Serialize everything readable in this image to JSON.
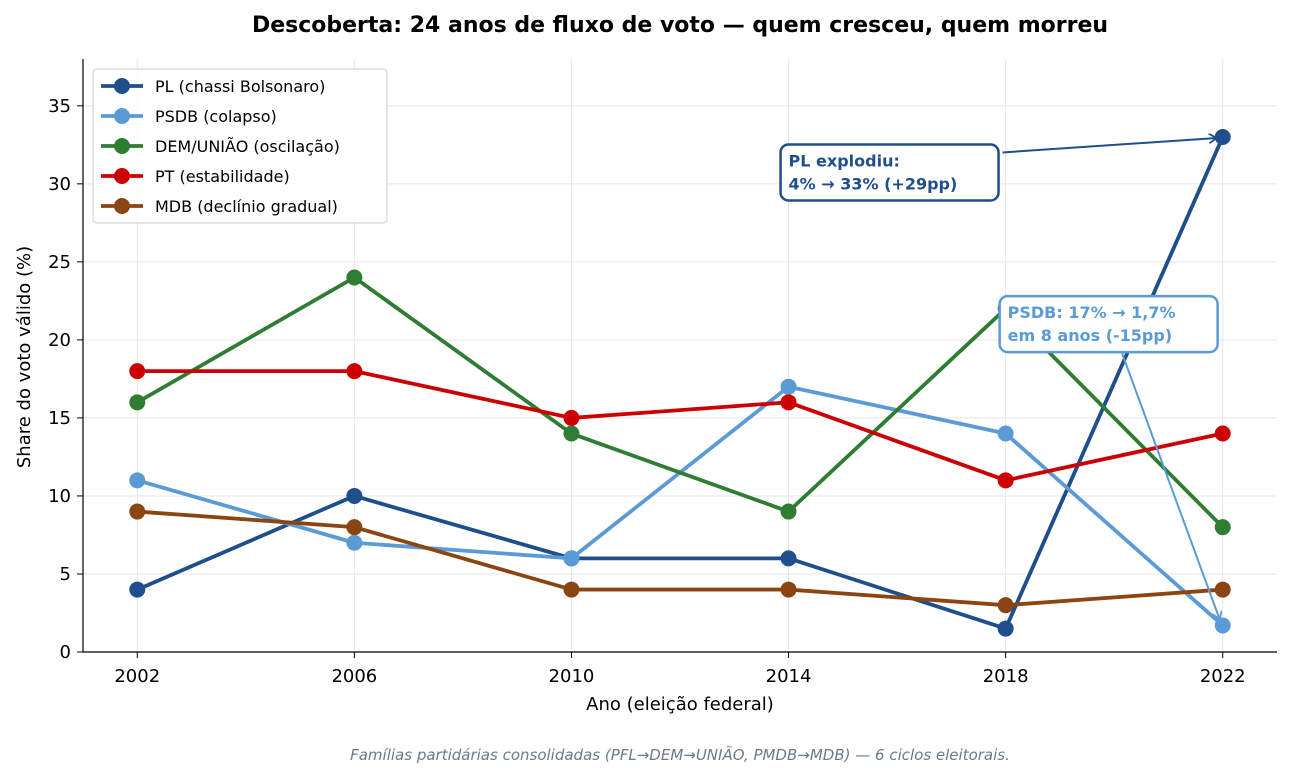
{
  "chart_data": {
    "type": "line",
    "title": "Descoberta: 24 anos de fluxo de voto — quem cresceu, quem morreu",
    "xlabel": "Ano (eleição federal)",
    "ylabel": "Share do voto válido (%)",
    "x": [
      2002,
      2006,
      2010,
      2014,
      2018,
      2022
    ],
    "x_tick_labels": [
      "2002",
      "2006",
      "2010",
      "2014",
      "2018",
      "2022"
    ],
    "ylim": [
      0,
      38
    ],
    "y_ticks": [
      0,
      5,
      10,
      15,
      20,
      25,
      30,
      35
    ],
    "y_tick_labels": [
      "0",
      "5",
      "10",
      "15",
      "20",
      "25",
      "30",
      "35"
    ],
    "grid": true,
    "legend_position": "top-left",
    "series": [
      {
        "name": "PL (chassi Bolsonaro)",
        "color": "#1f4e8c",
        "values": [
          4,
          10,
          6,
          6,
          1.5,
          33
        ]
      },
      {
        "name": "PSDB (colapso)",
        "color": "#5b9bd5",
        "values": [
          11,
          7,
          6,
          17,
          14,
          1.7
        ]
      },
      {
        "name": "DEM/UNIÃO (oscilação)",
        "color": "#2e7d32",
        "values": [
          16,
          24,
          14,
          9,
          22,
          8
        ]
      },
      {
        "name": "PT (estabilidade)",
        "color": "#cc0000",
        "values": [
          18,
          18,
          15,
          16,
          11,
          14
        ]
      },
      {
        "name": "MDB (declínio gradual)",
        "color": "#8b4513",
        "values": [
          9,
          8,
          4,
          4,
          3,
          4
        ]
      }
    ],
    "annotations": [
      {
        "lines": [
          "PL explodiu:",
          "4% → 33% (+29pp)"
        ],
        "color": "#1f4e8c",
        "text_anchor": [
          2014,
          29
        ],
        "arrow_target": [
          2022,
          33
        ]
      },
      {
        "lines": [
          "PSDB: 17% → 1,7%",
          "em 8 anos (-15pp)"
        ],
        "color": "#5b9bd5",
        "text_anchor": [
          2018,
          20.5
        ],
        "arrow_target": [
          2022,
          1.7
        ]
      }
    ],
    "footnote": "Famílias partidárias consolidadas (PFL→DEM→UNIÃO, PMDB→MDB) — 6 ciclos eleitorais."
  }
}
